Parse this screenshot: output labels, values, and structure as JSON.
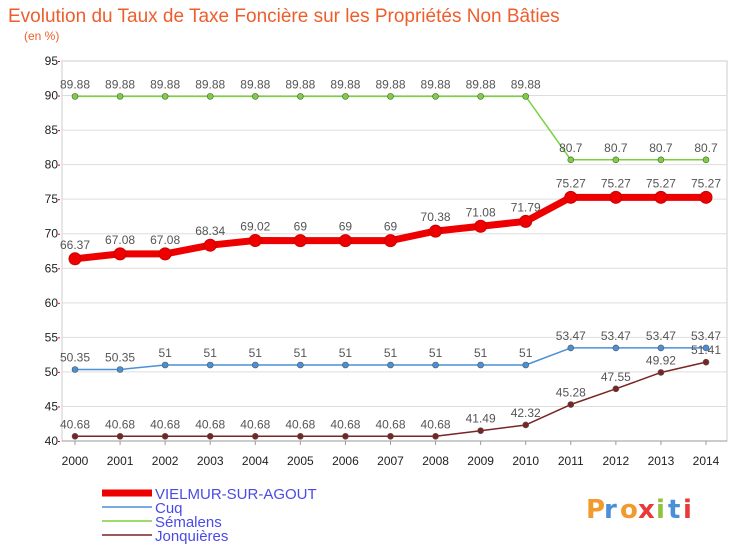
{
  "chart_data": {
    "type": "line",
    "title": "Evolution du Taux de Taxe Foncière sur les Propriétés Non Bâties",
    "subtitle": "(en %)",
    "xlabel": "",
    "ylabel": "",
    "ylim": [
      40,
      95
    ],
    "y_ticks": [
      "40",
      "45",
      "50",
      "55",
      "60",
      "65",
      "70",
      "75",
      "80",
      "85",
      "90",
      "95"
    ],
    "categories": [
      "2000",
      "2001",
      "2002",
      "2003",
      "2004",
      "2005",
      "2006",
      "2007",
      "2008",
      "2009",
      "2010",
      "2011",
      "2012",
      "2013",
      "2014"
    ],
    "grid": "horizontal",
    "legend_position": "bottom-left",
    "series": [
      {
        "name": "VIELMUR-SUR-AGOUT",
        "color": "#ee0000",
        "emphasis": "bold",
        "values": [
          66.37,
          67.08,
          67.08,
          68.34,
          69.02,
          69,
          69,
          69,
          70.38,
          71.08,
          71.79,
          75.27,
          75.27,
          75.27,
          75.27
        ],
        "labels": [
          "66.37",
          "67.08",
          "67.08",
          "68.34",
          "69.02",
          "69",
          "69",
          "69",
          "70.38",
          "71.08",
          "71.79",
          "75.27",
          "75.27",
          "75.27",
          "75.27"
        ]
      },
      {
        "name": "Cuq",
        "color": "#4a90d9",
        "emphasis": "normal",
        "values": [
          50.35,
          50.35,
          51,
          51,
          51,
          51,
          51,
          51,
          51,
          51,
          51,
          53.47,
          53.47,
          53.47,
          53.47
        ],
        "labels": [
          "50.35",
          "50.35",
          "51",
          "51",
          "51",
          "51",
          "51",
          "51",
          "51",
          "51",
          "51",
          "53.47",
          "53.47",
          "53.47",
          "53.47"
        ]
      },
      {
        "name": "Sémalens",
        "color": "#7ad13c",
        "emphasis": "normal",
        "values": [
          89.88,
          89.88,
          89.88,
          89.88,
          89.88,
          89.88,
          89.88,
          89.88,
          89.88,
          89.88,
          89.88,
          80.7,
          80.7,
          80.7,
          80.7
        ],
        "labels": [
          "89.88",
          "89.88",
          "89.88",
          "89.88",
          "89.88",
          "89.88",
          "89.88",
          "89.88",
          "89.88",
          "89.88",
          "89.88",
          "80.7",
          "80.7",
          "80.7",
          "80.7"
        ]
      },
      {
        "name": "Jonquières",
        "color": "#7a2424",
        "emphasis": "normal",
        "values": [
          40.68,
          40.68,
          40.68,
          40.68,
          40.68,
          40.68,
          40.68,
          40.68,
          40.68,
          41.49,
          42.32,
          45.28,
          47.55,
          49.92,
          51.41
        ],
        "labels": [
          "40.68",
          "40.68",
          "40.68",
          "40.68",
          "40.68",
          "40.68",
          "40.68",
          "40.68",
          "40.68",
          "41.49",
          "42.32",
          "45.28",
          "47.55",
          "49.92",
          "51.41"
        ]
      }
    ]
  },
  "logo": {
    "text": "Proxiti",
    "letter_colors": [
      "#f29a2e",
      "#4a90d9",
      "#f29a2e",
      "#e93a3a",
      "#8fc23d",
      "#4a90d9",
      "#e93a3a"
    ]
  }
}
